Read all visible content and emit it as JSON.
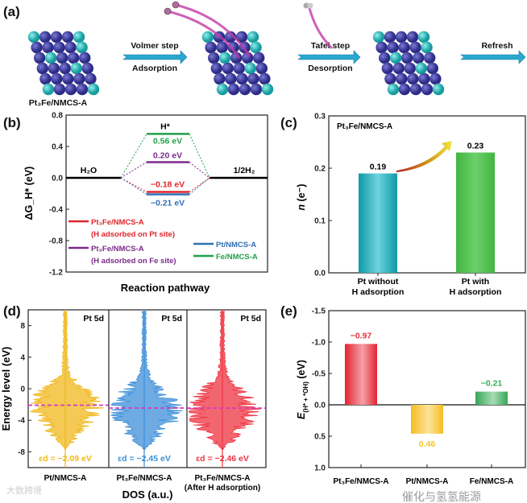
{
  "panel_labels": {
    "a": "(a)",
    "b": "(b)",
    "c": "(c)",
    "d": "(d)",
    "e": "(e)"
  },
  "scheme": {
    "catalyst_label": "Pt₃Fe/NMCS-A",
    "steps": [
      {
        "top": "Volmer step",
        "bottom": "Adsorption"
      },
      {
        "top": "Tafel step",
        "bottom": "Desorption"
      },
      {
        "top": "Refresh",
        "bottom": ""
      }
    ],
    "colors": {
      "pt": "#3b3a9c",
      "fe": "#2bb8b8",
      "h": "#c23aa8",
      "arrow": "#2aa7cf"
    }
  },
  "watermarks": {
    "left": "大数跨境",
    "right": "催化与氢氢能源"
  },
  "chart_data": [
    {
      "id": "b",
      "type": "line",
      "title": "",
      "xlabel": "Reaction pathway",
      "ylabel": "ΔG_H* (eV)",
      "ylabel_main": "ΔG",
      "ylabel_sub": "H*",
      "ylabel_unit": " (eV)",
      "ylim": [
        -1.2,
        0.8
      ],
      "yticks": [
        "0.8",
        "0.4",
        "0.0",
        "-0.4",
        "-0.8",
        "-1.2"
      ],
      "ytick_values": [
        0.8,
        0.4,
        0.0,
        -0.4,
        -0.8,
        -1.2
      ],
      "states": [
        "H₂O",
        "H*",
        "1/2H₂"
      ],
      "series": [
        {
          "name": "Pt₃Fe/NMCS-A",
          "note": "(H adsorbed on Pt site)",
          "color": "#e0262b",
          "values": [
            0,
            -0.18,
            0
          ],
          "label": "−0.18 eV"
        },
        {
          "name": "Pt₃Fe/NMCS-A",
          "note": "(H adsorbed on Fe site)",
          "color": "#7b2a8a",
          "values": [
            0,
            0.2,
            0
          ],
          "label": "0.20 eV"
        },
        {
          "name": "Pt/NMCS-A",
          "note": "",
          "color": "#2f6fb5",
          "values": [
            0,
            -0.21,
            0
          ],
          "label": "−0.21 eV"
        },
        {
          "name": "Fe/NMCS-A",
          "note": "",
          "color": "#21a04a",
          "values": [
            0,
            0.56,
            0
          ],
          "label": "0.56 eV"
        }
      ],
      "legend": "bottom"
    },
    {
      "id": "c",
      "type": "bar",
      "annotation": "Pt₃Fe/NMCS-A",
      "ylabel": "n (e⁻)",
      "ylabel_main": "n",
      "ylabel_unit": " (e⁻)",
      "ylim": [
        0,
        0.3
      ],
      "yticks": [
        "0.3",
        "0.2",
        "0.1",
        "0.0"
      ],
      "ytick_values": [
        0.3,
        0.2,
        0.1,
        0.0
      ],
      "categories": [
        [
          "Pt without",
          "H adsorption"
        ],
        [
          "Pt with",
          "H adsorption"
        ]
      ],
      "values": [
        0.19,
        0.23
      ],
      "value_labels": [
        "0.19",
        "0.23"
      ],
      "colors": [
        "#1fb6c2",
        "#4cc04a"
      ]
    },
    {
      "id": "d",
      "type": "area",
      "title_per_panel": "Pt 5d",
      "xlabel": "DOS (a.u.)",
      "ylabel": "Energy level (eV)",
      "ylim": [
        -10,
        10
      ],
      "yticks": [
        "8",
        "4",
        "0",
        "-4",
        "-8"
      ],
      "ytick_values": [
        8,
        4,
        0,
        -4,
        -8
      ],
      "panels": [
        {
          "name": "Pt/NMCS-A",
          "name2": "",
          "color": "#f0b81c",
          "d_band_center": -2.09,
          "label": "εd = −2.09 eV"
        },
        {
          "name": "Pt₃Fe/NMCS-A",
          "name2": "",
          "color": "#3d8fd9",
          "d_band_center": -2.45,
          "label": "εd = −2.45 eV"
        },
        {
          "name": "Pt₃Fe/NMCS-A",
          "name2": "(After H adsorption)",
          "color": "#ee3340",
          "d_band_center": -2.46,
          "label": "εd = −2.46 eV"
        }
      ],
      "center_line_color": "#d23ac0"
    },
    {
      "id": "e",
      "type": "bar",
      "ylabel": "E(H* + *OH) (eV)",
      "ylabel_main": "E",
      "ylabel_sub": "(H* + *OH)",
      "ylabel_unit": " (eV)",
      "ylim": [
        1.0,
        -1.5
      ],
      "yticks": [
        "-1.5",
        "-1.0",
        "-0.5",
        "0.0",
        "0.5",
        "1.0"
      ],
      "ytick_values": [
        -1.5,
        -1.0,
        -0.5,
        0.0,
        0.5,
        1.0
      ],
      "categories": [
        "Pt₃Fe/NMCS-A",
        "Pt/NMCS-A",
        "Fe/NMCS-A"
      ],
      "values": [
        -0.97,
        0.46,
        -0.21
      ],
      "value_labels": [
        "−0.97",
        "0.46",
        "−0.21"
      ],
      "colors": [
        "#e8323c",
        "#f5c22e",
        "#3aab5a"
      ]
    }
  ]
}
